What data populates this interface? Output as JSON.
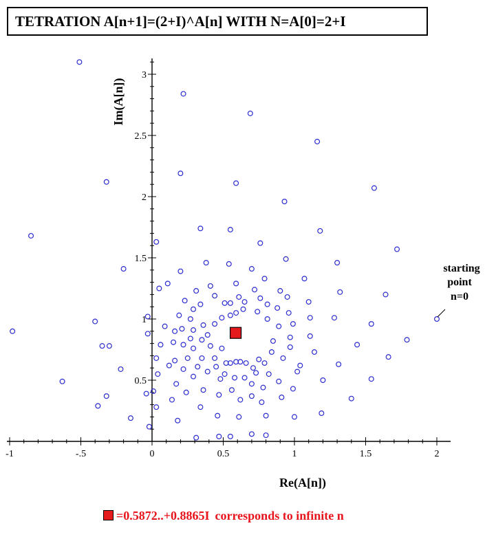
{
  "title": "TETRATION A[n+1]=(2+I)^A[n] WITH N=A[0]=2+I",
  "chart_data": {
    "type": "scatter",
    "xlabel": "Re(A[n])",
    "ylabel": "Im(A[n])",
    "xlim": [
      -1,
      2
    ],
    "ylim": [
      0,
      3.2
    ],
    "x_ticks": [
      "-1",
      "-.5",
      "0",
      "0.5",
      "1",
      "1.5",
      "2"
    ],
    "y_ticks": [
      "0.5",
      "1",
      "1.5",
      "2",
      "2.5",
      "3"
    ],
    "grid": false,
    "marker_color": "#2b2bd0",
    "limit_point": {
      "x": 0.5872,
      "y": 0.8865,
      "color": "#e41a1c"
    },
    "annotation": {
      "lines": [
        "starting",
        "point",
        "n=0"
      ],
      "x": 2.0,
      "y": 1.0
    },
    "points": [
      [
        2.0,
        1.0
      ],
      [
        1.79,
        0.83
      ],
      [
        1.72,
        1.57
      ],
      [
        1.66,
        0.69
      ],
      [
        1.64,
        1.2
      ],
      [
        1.56,
        2.07
      ],
      [
        1.54,
        0.51
      ],
      [
        1.54,
        0.96
      ],
      [
        1.44,
        0.79
      ],
      [
        1.4,
        0.35
      ],
      [
        1.32,
        1.22
      ],
      [
        1.31,
        0.63
      ],
      [
        1.3,
        1.46
      ],
      [
        1.28,
        1.01
      ],
      [
        1.2,
        0.5
      ],
      [
        1.19,
        0.23
      ],
      [
        1.18,
        1.72
      ],
      [
        1.16,
        2.45
      ],
      [
        1.14,
        0.73
      ],
      [
        1.11,
        0.86
      ],
      [
        1.11,
        1.01
      ],
      [
        1.1,
        1.14
      ],
      [
        1.07,
        1.33
      ],
      [
        1.04,
        0.62
      ],
      [
        1.02,
        0.57
      ],
      [
        1.0,
        0.2
      ],
      [
        0.99,
        0.96
      ],
      [
        0.99,
        0.43
      ],
      [
        0.97,
        0.77
      ],
      [
        0.97,
        0.85
      ],
      [
        0.96,
        1.05
      ],
      [
        0.95,
        1.18
      ],
      [
        0.94,
        1.49
      ],
      [
        0.93,
        1.96
      ],
      [
        0.92,
        0.68
      ],
      [
        0.91,
        0.36
      ],
      [
        0.9,
        1.23
      ],
      [
        0.89,
        0.49
      ],
      [
        0.89,
        0.94
      ],
      [
        0.88,
        1.09
      ],
      [
        0.85,
        0.82
      ],
      [
        0.84,
        0.73
      ],
      [
        0.82,
        0.55
      ],
      [
        0.81,
        1.0
      ],
      [
        0.81,
        1.12
      ],
      [
        0.8,
        0.21
      ],
      [
        0.8,
        0.05
      ],
      [
        0.79,
        0.64
      ],
      [
        0.79,
        1.33
      ],
      [
        0.78,
        0.44
      ],
      [
        0.77,
        0.32
      ],
      [
        0.76,
        1.17
      ],
      [
        0.76,
        1.62
      ],
      [
        0.75,
        0.67
      ],
      [
        0.74,
        1.06
      ],
      [
        0.73,
        0.56
      ],
      [
        0.72,
        1.24
      ],
      [
        0.71,
        0.6
      ],
      [
        0.7,
        0.47
      ],
      [
        0.7,
        0.37
      ],
      [
        0.7,
        0.06
      ],
      [
        0.7,
        1.41
      ],
      [
        0.69,
        2.68
      ],
      [
        0.66,
        0.64
      ],
      [
        0.65,
        1.14
      ],
      [
        0.65,
        0.52
      ],
      [
        0.64,
        1.08
      ],
      [
        0.62,
        0.65
      ],
      [
        0.62,
        0.34
      ],
      [
        0.61,
        0.2
      ],
      [
        0.61,
        1.18
      ],
      [
        0.59,
        0.65
      ],
      [
        0.59,
        1.05
      ],
      [
        0.59,
        2.11
      ],
      [
        0.59,
        1.29
      ],
      [
        0.58,
        0.52
      ],
      [
        0.56,
        0.42
      ],
      [
        0.55,
        1.03
      ],
      [
        0.55,
        0.04
      ],
      [
        0.55,
        0.64
      ],
      [
        0.55,
        1.73
      ],
      [
        0.55,
        1.13
      ],
      [
        0.54,
        1.45
      ],
      [
        0.52,
        0.64
      ],
      [
        0.51,
        0.55
      ],
      [
        0.51,
        1.13
      ],
      [
        0.49,
        0.76
      ],
      [
        0.49,
        1.01
      ],
      [
        0.48,
        0.51
      ],
      [
        0.47,
        0.38
      ],
      [
        0.47,
        0.04
      ],
      [
        0.46,
        0.21
      ],
      [
        0.45,
        0.61
      ],
      [
        0.44,
        0.68
      ],
      [
        0.44,
        0.96
      ],
      [
        0.44,
        1.19
      ],
      [
        0.41,
        0.78
      ],
      [
        0.41,
        1.27
      ],
      [
        0.39,
        0.57
      ],
      [
        0.39,
        0.87
      ],
      [
        0.38,
        1.46
      ],
      [
        0.36,
        0.42
      ],
      [
        0.36,
        0.95
      ],
      [
        0.35,
        0.83
      ],
      [
        0.35,
        0.68
      ],
      [
        0.34,
        0.28
      ],
      [
        0.34,
        1.12
      ],
      [
        0.34,
        1.74
      ],
      [
        0.32,
        0.61
      ],
      [
        0.31,
        0.03
      ],
      [
        0.31,
        1.23
      ],
      [
        0.29,
        0.53
      ],
      [
        0.29,
        0.76
      ],
      [
        0.29,
        1.08
      ],
      [
        0.29,
        0.91
      ],
      [
        0.27,
        1.0
      ],
      [
        0.27,
        0.84
      ],
      [
        0.25,
        0.68
      ],
      [
        0.24,
        0.4
      ],
      [
        0.23,
        1.15
      ],
      [
        0.22,
        0.59
      ],
      [
        0.22,
        2.84
      ],
      [
        0.22,
        0.79
      ],
      [
        0.21,
        0.92
      ],
      [
        0.2,
        1.39
      ],
      [
        0.2,
        2.19
      ],
      [
        0.19,
        1.03
      ],
      [
        0.18,
        0.17
      ],
      [
        0.17,
        0.47
      ],
      [
        0.16,
        0.66
      ],
      [
        0.16,
        0.9
      ],
      [
        0.15,
        0.81
      ],
      [
        0.14,
        0.34
      ],
      [
        0.12,
        0.62
      ],
      [
        0.11,
        1.29
      ],
      [
        0.09,
        0.94
      ],
      [
        0.06,
        0.79
      ],
      [
        0.05,
        1.25
      ],
      [
        0.04,
        0.55
      ],
      [
        0.03,
        0.28
      ],
      [
        0.03,
        0.68
      ],
      [
        0.03,
        1.63
      ],
      [
        0.01,
        0.41
      ],
      [
        -0.02,
        0.12
      ],
      [
        -0.03,
        0.88
      ],
      [
        -0.03,
        1.02
      ],
      [
        -0.04,
        0.39
      ],
      [
        -0.15,
        0.19
      ],
      [
        -0.2,
        1.41
      ],
      [
        -0.22,
        0.59
      ],
      [
        -0.3,
        0.78
      ],
      [
        -0.32,
        0.37
      ],
      [
        -0.32,
        2.12
      ],
      [
        -0.35,
        0.78
      ],
      [
        -0.38,
        0.29
      ],
      [
        -0.4,
        0.98
      ],
      [
        -0.51,
        3.1
      ],
      [
        -0.63,
        0.49
      ],
      [
        -0.85,
        1.68
      ],
      [
        -0.98,
        0.9
      ]
    ]
  },
  "legend": {
    "value": "=0.5872..+0.8865I",
    "note": "corresponds to infinite n"
  }
}
